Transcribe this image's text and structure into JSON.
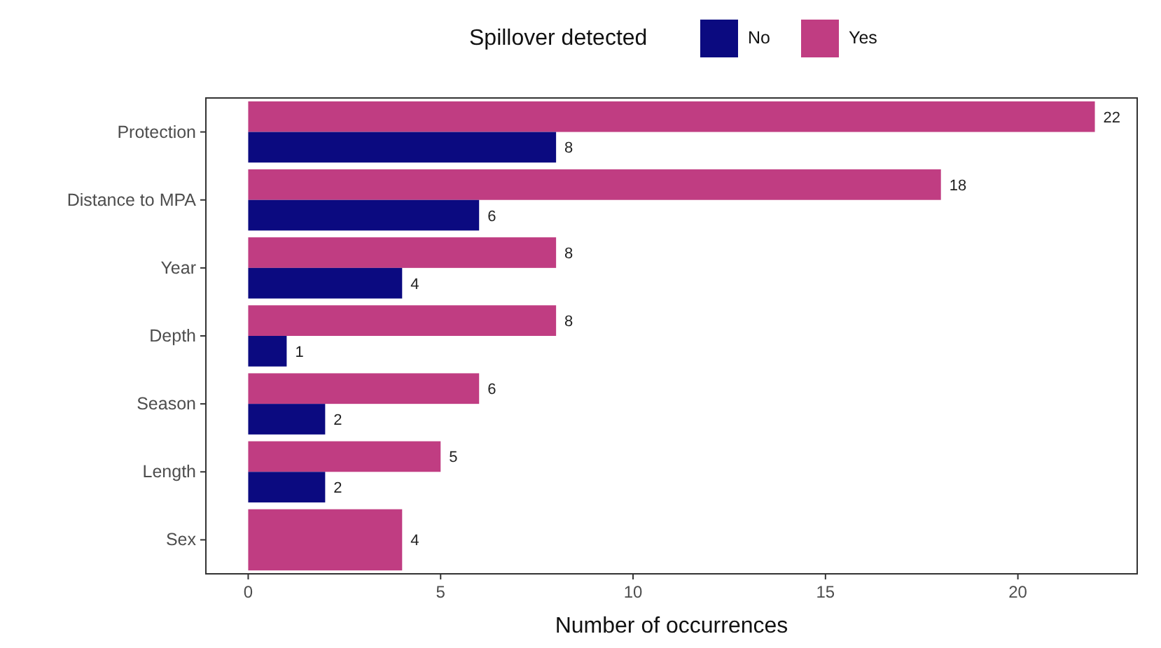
{
  "chart_data": {
    "type": "bar",
    "orientation": "horizontal",
    "xlabel": "Number of occurrences",
    "legend_title": "Spillover detected",
    "legend": "top",
    "grid": false,
    "data_labels": true,
    "categories": [
      "Protection",
      "Distance to MPA",
      "Year",
      "Depth",
      "Season",
      "Length",
      "Sex"
    ],
    "xlim": [
      -1.1,
      23.1
    ],
    "xticks": [
      0,
      5,
      10,
      15,
      20
    ],
    "series": [
      {
        "name": "No",
        "color": "#0b0a80",
        "values": [
          8,
          6,
          4,
          1,
          2,
          2,
          null
        ]
      },
      {
        "name": "Yes",
        "color": "#c03d82",
        "values": [
          22,
          18,
          8,
          8,
          6,
          5,
          4
        ]
      }
    ]
  }
}
